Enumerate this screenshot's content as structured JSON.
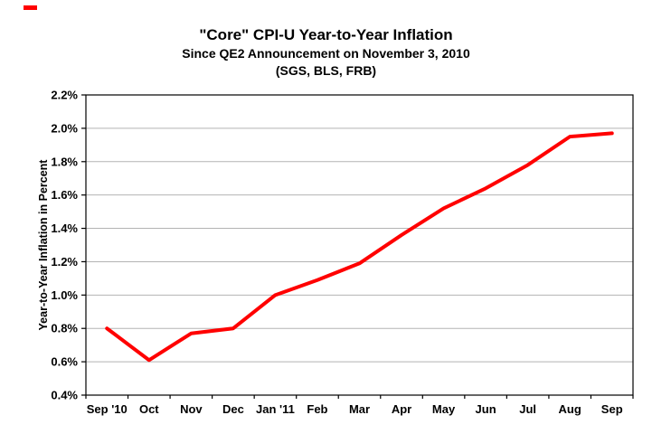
{
  "page": {
    "artifact_color": "#ff0000"
  },
  "chart_data": {
    "type": "line",
    "title": "\"Core\" CPI-U Year-to-Year Inflation",
    "subtitle": "Since QE2 Announcement on November 3, 2010",
    "source_line": "(SGS, BLS, FRB)",
    "ylabel": "Year-to-Year Inflation in Percent",
    "categories": [
      "Sep '10",
      "Oct",
      "Nov",
      "Dec",
      "Jan '11",
      "Feb",
      "Mar",
      "Apr",
      "May",
      "Jun",
      "Jul",
      "Aug",
      "Sep"
    ],
    "values": [
      0.8,
      0.61,
      0.77,
      0.8,
      1.0,
      1.09,
      1.19,
      1.36,
      1.52,
      1.64,
      1.78,
      1.95,
      1.97
    ],
    "ylim": [
      0.4,
      2.2
    ],
    "y_tick_step": 0.2,
    "y_ticks": [
      "0.4%",
      "0.6%",
      "0.8%",
      "1.0%",
      "1.2%",
      "1.4%",
      "1.6%",
      "1.8%",
      "2.0%",
      "2.2%"
    ],
    "line_color": "#ff0000",
    "grid_color": "#b3b3b3",
    "axis_color": "#000000",
    "grid": true,
    "legend": "none"
  }
}
